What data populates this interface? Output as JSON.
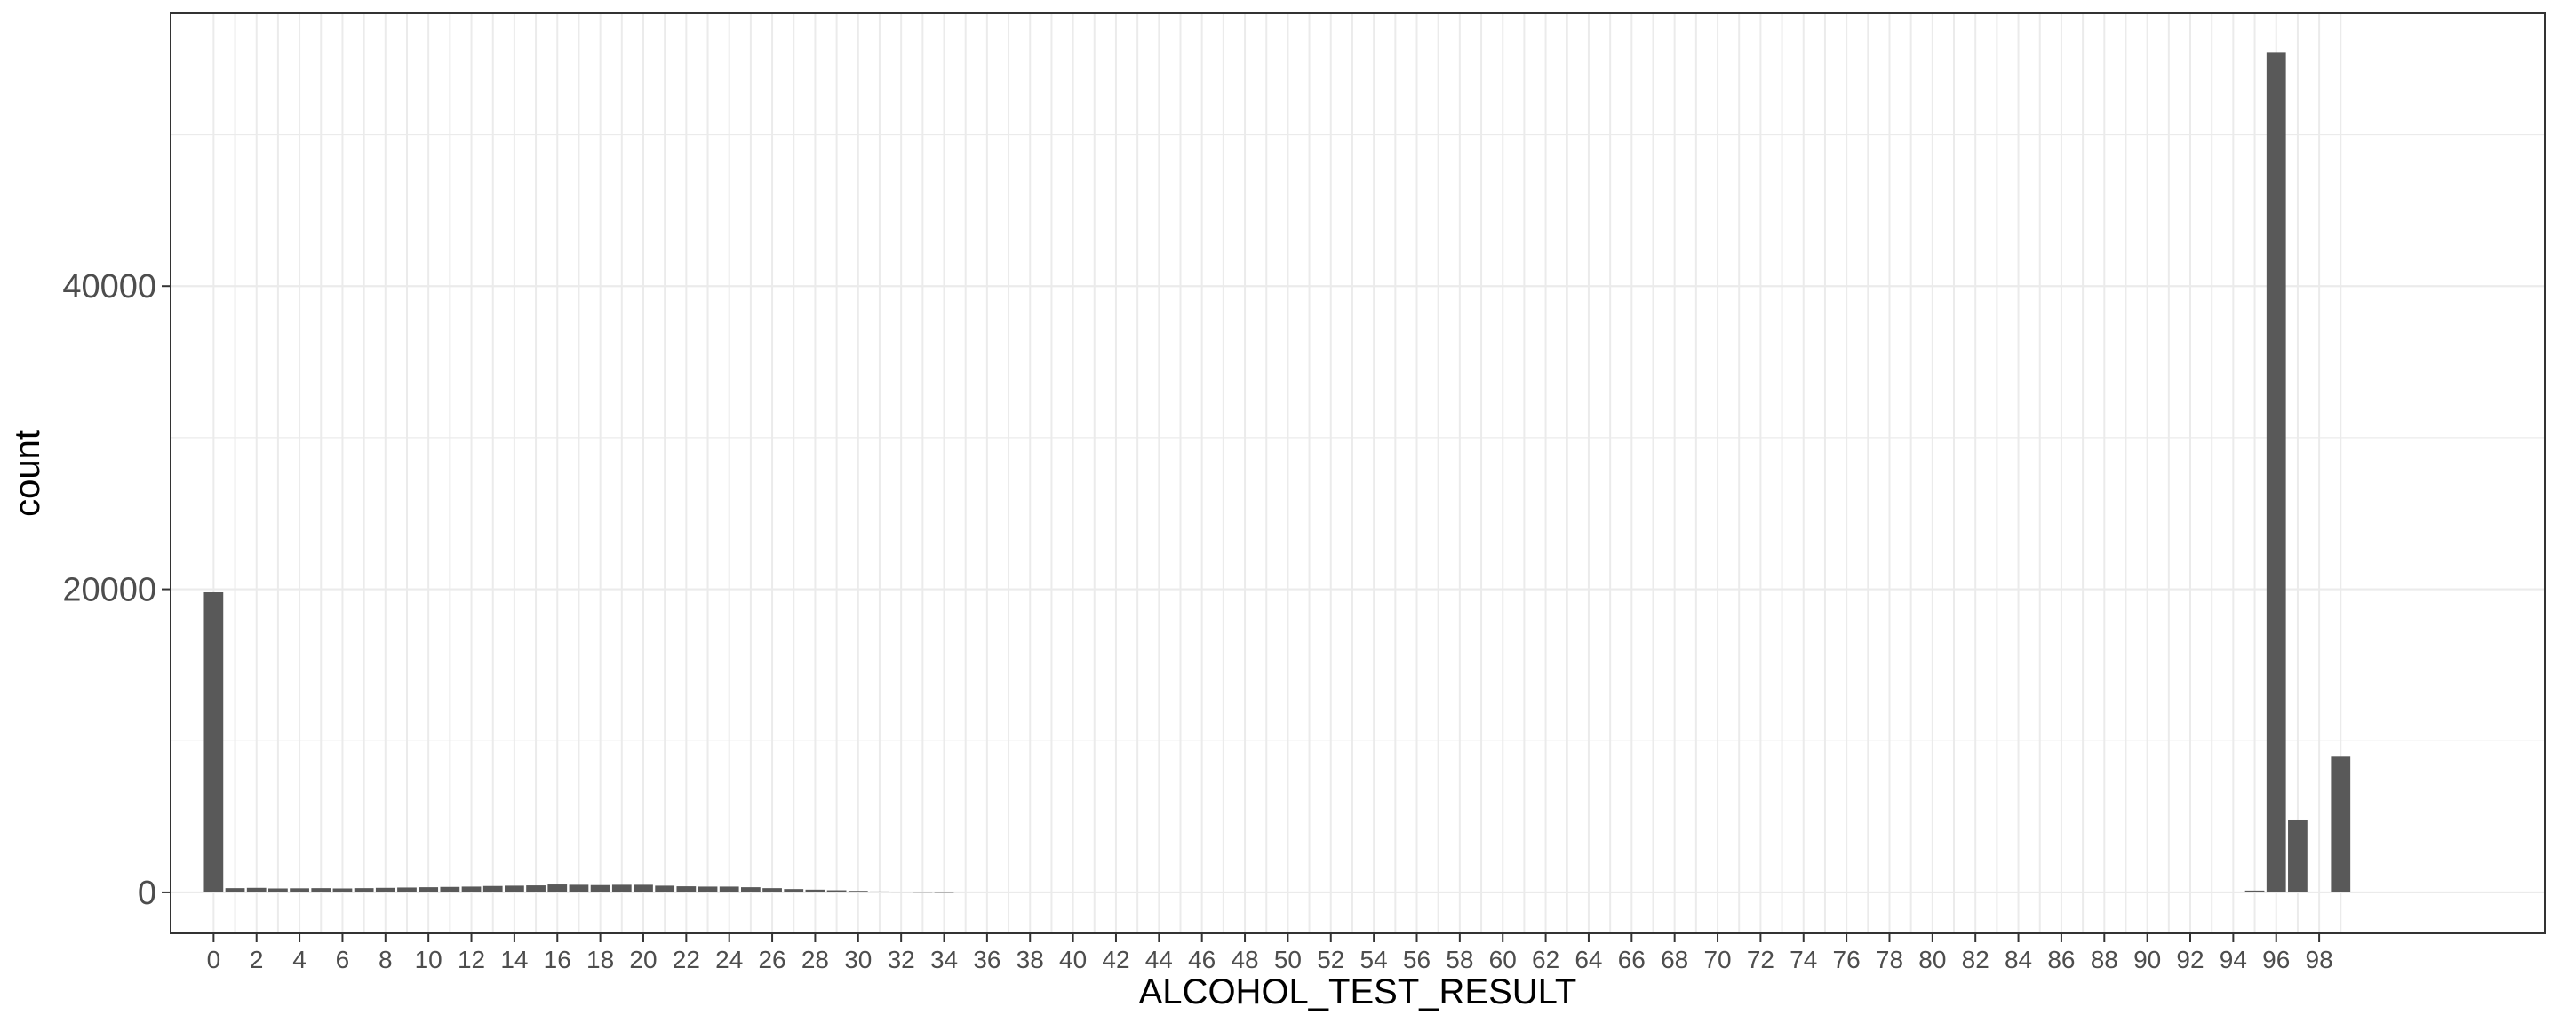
{
  "chart_data": {
    "type": "bar",
    "xlabel": "ALCOHOL_TEST_RESULT",
    "ylabel": "count",
    "title": "",
    "x_tick_labels": [
      "0",
      "2",
      "4",
      "6",
      "8",
      "10",
      "12",
      "14",
      "16",
      "18",
      "20",
      "22",
      "24",
      "26",
      "28",
      "30",
      "32",
      "34",
      "36",
      "38",
      "40",
      "42",
      "44",
      "46",
      "48",
      "50",
      "52",
      "54",
      "56",
      "58",
      "60",
      "62",
      "64",
      "66",
      "68",
      "70",
      "72",
      "74",
      "76",
      "78",
      "80",
      "82",
      "84",
      "86",
      "88",
      "90",
      "92",
      "94",
      "96",
      "98"
    ],
    "y_ticks": [
      0,
      20000,
      40000
    ],
    "y_tick_labels": [
      "0",
      "20000",
      "40000"
    ],
    "xlim": [
      -2,
      108.5
    ],
    "ylim": [
      -2700,
      58000
    ],
    "grid": true,
    "x": [
      0,
      1,
      2,
      3,
      4,
      5,
      6,
      7,
      8,
      9,
      10,
      11,
      12,
      13,
      14,
      15,
      16,
      17,
      18,
      19,
      20,
      21,
      22,
      23,
      24,
      25,
      26,
      27,
      28,
      29,
      30,
      31,
      32,
      33,
      34,
      95,
      96,
      97,
      99
    ],
    "values": [
      19800,
      280,
      300,
      260,
      270,
      280,
      260,
      280,
      300,
      320,
      340,
      360,
      380,
      420,
      440,
      460,
      520,
      500,
      480,
      500,
      500,
      440,
      400,
      380,
      380,
      340,
      280,
      220,
      180,
      140,
      100,
      60,
      40,
      30,
      20,
      120,
      55400,
      4800,
      9000
    ],
    "colors": {
      "bar": "#595959",
      "grid": "#ebebeb",
      "panel_border": "#333333",
      "background": "#ffffff"
    }
  }
}
